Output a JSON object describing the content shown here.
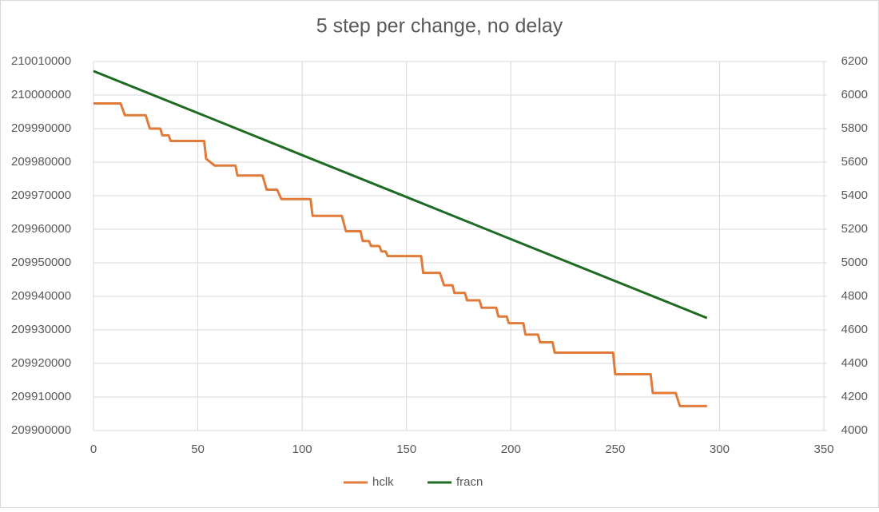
{
  "chart_data": {
    "type": "line",
    "title": "5 step per change, no delay",
    "series": [
      {
        "name": "hclk",
        "color": "#e07b39",
        "axis": "y",
        "x": [
          0,
          13,
          15,
          25,
          27,
          32,
          33,
          36,
          37,
          53,
          54,
          58,
          68,
          69,
          81,
          83,
          88,
          90,
          104,
          105,
          119,
          121,
          128,
          129,
          132,
          133,
          137,
          138,
          140,
          141,
          157,
          158,
          166,
          168,
          172,
          173,
          178,
          179,
          185,
          186,
          193,
          194,
          198,
          199,
          206,
          207,
          213,
          214,
          220,
          221,
          249,
          250,
          267,
          268,
          279,
          281,
          294
        ],
        "values": [
          209997500,
          209997500,
          209994000,
          209994000,
          209990000,
          209990000,
          209988000,
          209988000,
          209986300,
          209986300,
          209981000,
          209979000,
          209979000,
          209976000,
          209976000,
          209971800,
          209971800,
          209969000,
          209969000,
          209964000,
          209964000,
          209959400,
          209959400,
          209956500,
          209956500,
          209955000,
          209955000,
          209953400,
          209953400,
          209952000,
          209952000,
          209947000,
          209947000,
          209943300,
          209943300,
          209941000,
          209941000,
          209938800,
          209938800,
          209936600,
          209936600,
          209934000,
          209934000,
          209932000,
          209932000,
          209928600,
          209928600,
          209926300,
          209926300,
          209923200,
          209923200,
          209916800,
          209916800,
          209911200,
          209911200,
          209907300,
          209907300
        ]
      },
      {
        "name": "fracn",
        "color": "#1e6b24",
        "axis": "y2",
        "x": [
          0,
          50,
          100,
          150,
          200,
          250,
          294
        ],
        "values": [
          6143,
          5893,
          5642,
          5392,
          5141,
          4891,
          4671
        ]
      }
    ],
    "xlim": [
      0,
      350
    ],
    "xticks": [
      0,
      50,
      100,
      150,
      200,
      250,
      300,
      350
    ],
    "ylim": [
      209900000,
      210010000
    ],
    "yticks": [
      209900000,
      209910000,
      209920000,
      209930000,
      209940000,
      209950000,
      209960000,
      209970000,
      209980000,
      209990000,
      210000000,
      210010000
    ],
    "y2lim": [
      4000,
      6200
    ],
    "y2ticks": [
      4000,
      4200,
      4400,
      4600,
      4800,
      5000,
      5200,
      5400,
      5600,
      5800,
      6000,
      6200
    ],
    "grid": true,
    "legend": "bottom"
  }
}
